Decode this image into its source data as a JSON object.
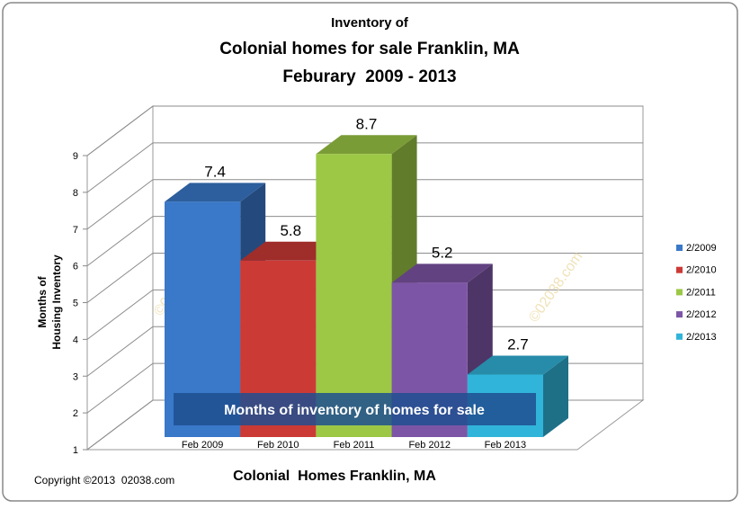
{
  "chart_data": {
    "type": "bar",
    "title": [
      "Inventory of",
      "Colonial homes for sale Franklin, MA",
      "Feburary  2009 - 2013"
    ],
    "ylabel": [
      "Months of",
      "Housing Inventory"
    ],
    "xlabel": "Colonial  Homes Franklin, MA",
    "annotation": "Months of inventory of homes for sale",
    "watermark": "©02038.com",
    "footnote": "Copyright ©2013  02038.com",
    "categories": [
      "Feb 2009",
      "Feb 2010",
      "Feb 2011",
      "Feb 2012",
      "Feb 2013"
    ],
    "series": [
      {
        "name": "2/2009",
        "color": "#3a78c9",
        "values": [
          7.4,
          null,
          null,
          null,
          null
        ]
      },
      {
        "name": "2/2010",
        "color": "#cc3a36",
        "values": [
          null,
          5.8,
          null,
          null,
          null
        ]
      },
      {
        "name": "2/2011",
        "color": "#9cc845",
        "values": [
          null,
          null,
          8.7,
          null,
          null
        ]
      },
      {
        "name": "2/2012",
        "color": "#7d55a6",
        "values": [
          null,
          null,
          null,
          5.2,
          null
        ]
      },
      {
        "name": "2/2013",
        "color": "#31b4d9",
        "values": [
          null,
          null,
          null,
          null,
          2.7
        ]
      }
    ],
    "ylim": [
      1,
      9
    ],
    "yticks": [
      1,
      2,
      3,
      4,
      5,
      6,
      7,
      8,
      9
    ],
    "grid": true,
    "legend": "right"
  }
}
